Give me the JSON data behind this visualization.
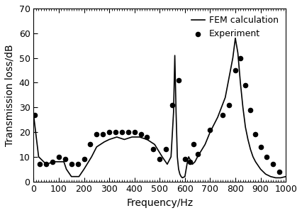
{
  "xlabel": "Frequency/Hz",
  "ylabel": "Transmission loss/dB",
  "xlim": [
    0,
    1000
  ],
  "ylim": [
    0,
    70
  ],
  "xticks": [
    0,
    100,
    200,
    300,
    400,
    500,
    600,
    700,
    800,
    900,
    1000
  ],
  "yticks": [
    0,
    10,
    20,
    30,
    40,
    50,
    60,
    70
  ],
  "fem_x": [
    0,
    20,
    50,
    80,
    120,
    130,
    150,
    180,
    200,
    230,
    250,
    280,
    300,
    330,
    360,
    390,
    420,
    450,
    480,
    510,
    530,
    545,
    555,
    560,
    565,
    570,
    575,
    580,
    585,
    590,
    600,
    610,
    615,
    620,
    625,
    630,
    640,
    650,
    680,
    700,
    730,
    760,
    790,
    800,
    810,
    820,
    830,
    840,
    850,
    860,
    870,
    880,
    900,
    920,
    940,
    960,
    980,
    1000
  ],
  "fem_y": [
    27,
    10,
    7,
    8,
    8,
    5,
    2,
    2,
    5,
    10,
    14,
    16,
    17,
    18,
    17,
    18,
    18,
    17,
    15,
    10,
    7,
    10,
    28,
    51,
    28,
    10,
    5,
    3,
    2,
    1.5,
    2,
    8,
    10,
    9,
    8,
    7,
    8,
    10,
    15,
    20,
    26,
    34,
    50,
    58,
    52,
    40,
    30,
    22,
    17,
    13,
    10,
    8,
    5,
    3,
    2,
    1.5,
    1.5,
    2
  ],
  "exp_x": [
    5,
    25,
    50,
    75,
    100,
    125,
    150,
    175,
    200,
    225,
    250,
    275,
    300,
    325,
    350,
    375,
    400,
    425,
    450,
    475,
    500,
    525,
    550,
    575,
    600,
    620,
    635,
    650,
    700,
    750,
    775,
    800,
    820,
    840,
    860,
    880,
    900,
    925,
    950,
    975
  ],
  "exp_y": [
    27,
    7,
    7,
    8,
    10,
    9,
    7,
    7,
    9,
    15,
    19,
    19,
    20,
    20,
    20,
    20,
    20,
    19,
    18,
    13,
    9,
    13,
    31,
    41,
    9,
    8,
    15,
    11,
    21,
    27,
    31,
    45,
    50,
    39,
    29,
    19,
    14,
    10,
    7,
    4
  ],
  "line_color": "#000000",
  "dot_color": "#000000",
  "background_color": "#ffffff",
  "legend_line_label": "FEM calculation",
  "legend_dot_label": "Experiment",
  "font_size": 10,
  "tick_font_size": 9
}
